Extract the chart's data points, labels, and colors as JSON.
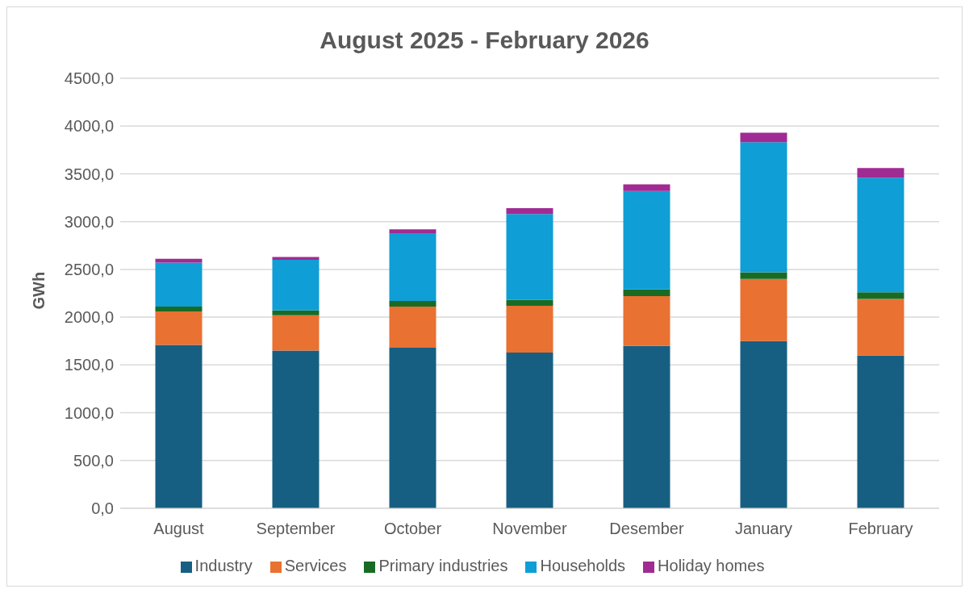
{
  "chart_data": {
    "type": "bar",
    "title": "August 2025 - February 2026",
    "ylabel": "GWh",
    "stacked": true,
    "categories": [
      "August",
      "September",
      "October",
      "November",
      "Desember",
      "January",
      "February"
    ],
    "series": [
      {
        "name": "Industry",
        "color": "#175f82",
        "values": [
          1710,
          1650,
          1680,
          1630,
          1700,
          1750,
          1600
        ]
      },
      {
        "name": "Services",
        "color": "#e97132",
        "values": [
          350,
          370,
          430,
          490,
          520,
          650,
          590
        ]
      },
      {
        "name": "Primary industries",
        "color": "#196b24",
        "values": [
          50,
          50,
          60,
          60,
          70,
          70,
          70
        ]
      },
      {
        "name": "Households",
        "color": "#0f9ed5",
        "values": [
          460,
          530,
          710,
          900,
          1030,
          1360,
          1200
        ]
      },
      {
        "name": "Holiday homes",
        "color": "#a02b93",
        "values": [
          40,
          30,
          40,
          60,
          70,
          100,
          100
        ]
      }
    ],
    "ylim": [
      0,
      4500
    ],
    "yticks": [
      {
        "value": 0,
        "label": "0,0"
      },
      {
        "value": 500,
        "label": "500,0"
      },
      {
        "value": 1000,
        "label": "1000,0"
      },
      {
        "value": 1500,
        "label": "1500,0"
      },
      {
        "value": 2000,
        "label": "2000,0"
      },
      {
        "value": 2500,
        "label": "2500,0"
      },
      {
        "value": 3000,
        "label": "3000,0"
      },
      {
        "value": 3500,
        "label": "3500,0"
      },
      {
        "value": 4000,
        "label": "4000,0"
      },
      {
        "value": 4500,
        "label": "4500,0"
      }
    ],
    "grid": "y",
    "legend": "bottom"
  }
}
